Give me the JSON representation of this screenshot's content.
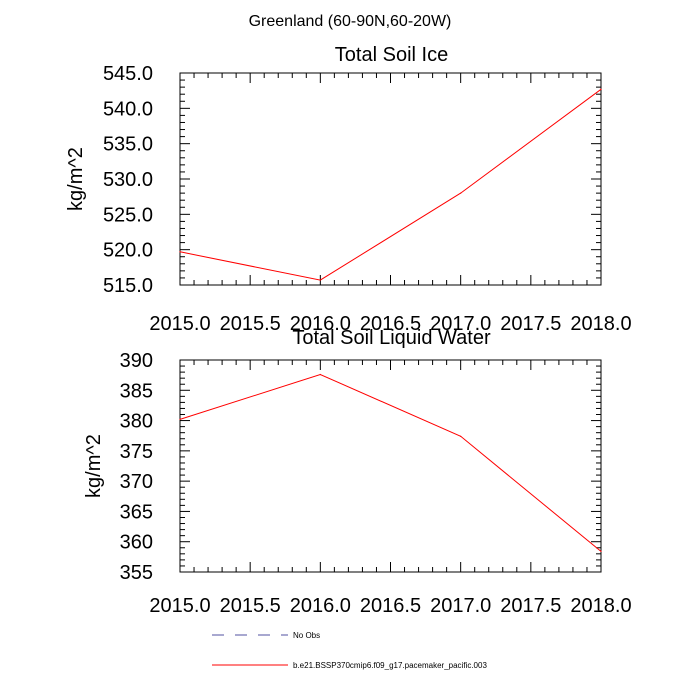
{
  "suptitle": "Greenland (60-90N,60-20W)",
  "chart_data": [
    {
      "type": "line",
      "title": "Total Soil Ice",
      "xlabel": "",
      "ylabel": "kg/m^2",
      "xlim": [
        2015.0,
        2018.0
      ],
      "ylim": [
        515.0,
        545.0
      ],
      "xticks": [
        "2015.0",
        "2015.5",
        "2016.0",
        "2016.5",
        "2017.0",
        "2017.5",
        "2018.0"
      ],
      "yticks": [
        "515.0",
        "520.0",
        "525.0",
        "530.0",
        "535.0",
        "540.0",
        "545.0"
      ],
      "series": [
        {
          "name": "b.e21.BSSP370cmip6.f09_g17.pacemaker_pacific.003",
          "color": "#ff0000",
          "x": [
            2015.0,
            2016.0,
            2017.0,
            2018.0
          ],
          "y": [
            519.7,
            515.7,
            528.0,
            542.7
          ]
        }
      ]
    },
    {
      "type": "line",
      "title": "Total Soil Liquid Water",
      "xlabel": "",
      "ylabel": "kg/m^2",
      "xlim": [
        2015.0,
        2018.0
      ],
      "ylim": [
        355,
        390
      ],
      "xticks": [
        "2015.0",
        "2015.5",
        "2016.0",
        "2016.5",
        "2017.0",
        "2017.5",
        "2018.0"
      ],
      "yticks": [
        "355",
        "360",
        "365",
        "370",
        "375",
        "380",
        "385",
        "390"
      ],
      "series": [
        {
          "name": "b.e21.BSSP370cmip6.f09_g17.pacemaker_pacific.003",
          "color": "#ff0000",
          "x": [
            2015.0,
            2016.0,
            2017.0,
            2018.0
          ],
          "y": [
            380.2,
            387.6,
            377.4,
            358.4
          ]
        }
      ]
    }
  ],
  "legend": [
    {
      "label": "No Obs",
      "color": "#5050a0",
      "dash": true
    },
    {
      "label": "b.e21.BSSP370cmip6.f09_g17.pacemaker_pacific.003",
      "color": "#ff0000",
      "dash": false
    }
  ]
}
